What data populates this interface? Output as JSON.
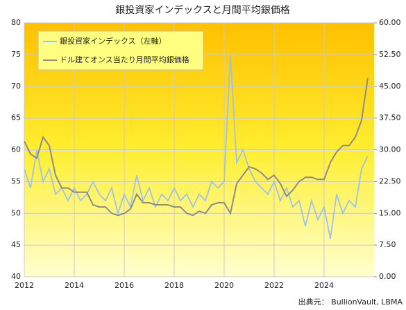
{
  "chart_data": {
    "type": "line",
    "title": "銀投資家インデックスと月間平均銀価格",
    "source": "出典元： BullionVault, LBMA",
    "x": [
      2012,
      2012.25,
      2012.5,
      2012.75,
      2013,
      2013.25,
      2013.5,
      2013.75,
      2014,
      2014.25,
      2014.5,
      2014.75,
      2015,
      2015.25,
      2015.5,
      2015.75,
      2016,
      2016.25,
      2016.5,
      2016.75,
      2017,
      2017.25,
      2017.5,
      2017.75,
      2018,
      2018.25,
      2018.5,
      2018.75,
      2019,
      2019.25,
      2019.5,
      2019.75,
      2020,
      2020.25,
      2020.5,
      2020.75,
      2021,
      2021.25,
      2021.5,
      2021.75,
      2022,
      2022.25,
      2022.5,
      2022.75,
      2023,
      2023.25,
      2023.5,
      2023.75,
      2024,
      2024.25,
      2024.5,
      2024.75,
      2025,
      2025.25,
      2025.5,
      2025.75
    ],
    "series": [
      {
        "name": "銀投資家インデックス（左軸）",
        "color": "#9dc3e6",
        "axis": "y",
        "values": [
          57,
          54,
          60,
          55,
          57,
          53,
          54,
          52,
          54,
          52,
          53,
          55,
          53,
          52,
          54,
          50,
          53,
          51,
          56,
          52,
          54,
          51,
          53,
          52,
          54,
          52,
          53,
          51,
          53,
          52,
          55,
          54,
          55,
          75,
          58,
          60,
          57,
          55,
          54,
          53,
          55,
          52,
          54,
          51,
          52,
          48,
          52,
          49,
          51,
          46,
          53,
          50,
          52,
          51,
          57,
          59
        ]
      },
      {
        "name": "ドル建てオンス当たり月間平均銀価格",
        "color": "#8c8c8c",
        "axis": "y2",
        "values": [
          32,
          29,
          28,
          33,
          31,
          24,
          21,
          21,
          20,
          20,
          20,
          17,
          16.5,
          16.5,
          15,
          14.5,
          15,
          16,
          19.5,
          17.5,
          17.5,
          17,
          17,
          17,
          16.5,
          16.5,
          15,
          14.5,
          15.5,
          15,
          17,
          17.5,
          17.5,
          15,
          22,
          24,
          26,
          25.5,
          24.5,
          23,
          24,
          22,
          19,
          20.5,
          22.5,
          23.5,
          23.5,
          23,
          23,
          27,
          29.5,
          31,
          31,
          33,
          37,
          47
        ]
      }
    ],
    "xlim": [
      2012,
      2026
    ],
    "xticks": [
      2012,
      2014,
      2016,
      2018,
      2020,
      2022,
      2024
    ],
    "ylim": [
      40,
      80
    ],
    "yticks": [
      40,
      45,
      50,
      55,
      60,
      65,
      70,
      75,
      80
    ],
    "y2lim": [
      0,
      60
    ],
    "y2ticks": [
      {
        "value": 0,
        "label": "0.00"
      },
      {
        "value": 7.5,
        "label": "7.50"
      },
      {
        "value": 15,
        "label": "15.00"
      },
      {
        "value": 22.5,
        "label": "22.50"
      },
      {
        "value": 30,
        "label": "30.00"
      },
      {
        "value": 37.5,
        "label": "37.50"
      },
      {
        "value": 45,
        "label": "45.00"
      },
      {
        "value": 52.5,
        "label": "52.50"
      },
      {
        "value": 60,
        "label": "60.00"
      }
    ],
    "grid": true
  }
}
